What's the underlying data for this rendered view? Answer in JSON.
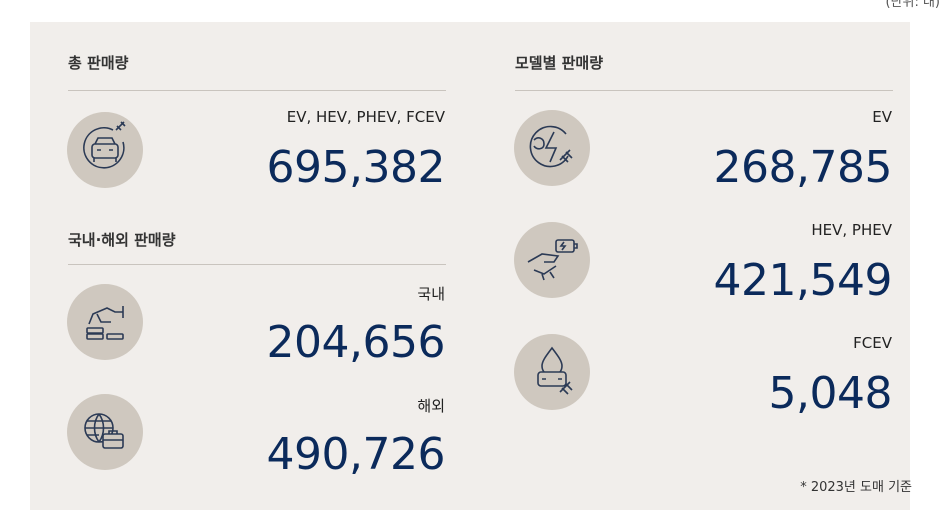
{
  "unit": "(단위: 대)",
  "sections": [
    {
      "title": "총 판매량",
      "items": [
        {
          "label": "EV, HEV, PHEV, FCEV",
          "value": "695,382"
        }
      ]
    },
    {
      "title": "국내·해외 판매량",
      "items": [
        {
          "label": "국내",
          "value": "204,656"
        },
        {
          "label": "해외",
          "value": "490,726"
        }
      ]
    },
    {
      "title": "모델별 판매량",
      "items": [
        {
          "label": "EV",
          "value": "268,785"
        },
        {
          "label": "HEV, PHEV",
          "value": "421,549"
        },
        {
          "label": "FCEV",
          "value": "5,048"
        }
      ]
    }
  ],
  "note": "* 2023년 도매 기준"
}
